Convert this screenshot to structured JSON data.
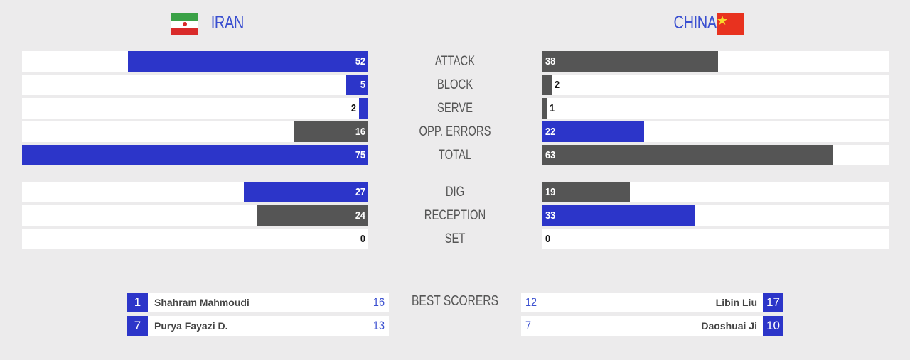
{
  "teams": [
    {
      "name": "IRAN"
    },
    {
      "name": "CHINA"
    }
  ],
  "stat_groups": [
    [
      {
        "label": "ATTACK",
        "values": [
          52,
          38
        ]
      },
      {
        "label": "BLOCK",
        "values": [
          5,
          2
        ]
      },
      {
        "label": "SERVE",
        "values": [
          2,
          1
        ]
      },
      {
        "label": "OPP. ERRORS",
        "values": [
          16,
          22
        ]
      },
      {
        "label": "TOTAL",
        "values": [
          75,
          63
        ]
      }
    ],
    [
      {
        "label": "DIG",
        "values": [
          27,
          19
        ]
      },
      {
        "label": "RECEPTION",
        "values": [
          24,
          33
        ]
      },
      {
        "label": "SET",
        "values": [
          0,
          0
        ]
      }
    ]
  ],
  "best_scorers": {
    "title": "BEST SCORERS",
    "home": [
      {
        "number": 1,
        "name": "Shahram Mahmoudi",
        "points": 16
      },
      {
        "number": 7,
        "name": "Purya Fayazi D.",
        "points": 13
      }
    ],
    "away": [
      {
        "number": 17,
        "name": "Libin Liu",
        "points": 12
      },
      {
        "number": 10,
        "name": "Daoshuai Ji",
        "points": 7
      }
    ]
  }
}
